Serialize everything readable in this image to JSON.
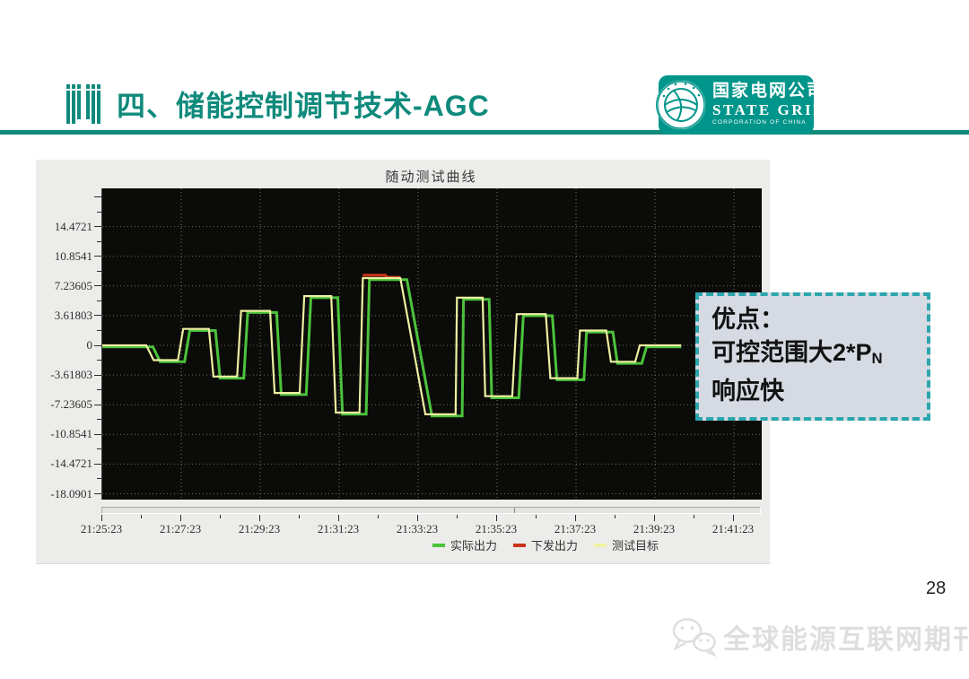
{
  "header": {
    "title": "四、储能控制调节技术-AGC"
  },
  "logo": {
    "line1": "国家电网公司",
    "line2": "STATE GRID",
    "line3": "CORPORATION OF CHINA"
  },
  "callout": {
    "line1": "优点：",
    "line2_main": "可控范围大2*P",
    "line2_sub": "N",
    "line3": "响应快"
  },
  "page_number": "28",
  "watermark": {
    "text": "全球能源互联网期刊",
    "icon": "wechat-icon"
  },
  "colors": {
    "accent_teal": "#0f8a7c",
    "logo_teal": "#00958a",
    "callout_border": "#2ba6ad",
    "callout_bg": "#d6dae3",
    "plot_bg": "#0b0b09",
    "panel_bg": "#ececea"
  },
  "chart_data": {
    "type": "line",
    "title": "随动测试曲线",
    "xlabel": "",
    "ylabel": "",
    "grid": true,
    "legend_position": "bottom",
    "x_tick_labels": [
      "21:25:23",
      "21:27:23",
      "21:29:23",
      "21:31:23",
      "21:33:23",
      "21:35:23",
      "21:37:23",
      "21:39:23",
      "21:41:23"
    ],
    "x_tick_interval_s": 120,
    "x_minor_interval_s": 60,
    "x_span_s": 1002,
    "y_tick_values": [
      14.4721,
      10.8541,
      7.23605,
      3.61803,
      0,
      -3.61803,
      -7.23605,
      -10.8541,
      -14.4721,
      -18.0901
    ],
    "y_range": [
      -19.1,
      19.1
    ],
    "series": [
      {
        "name": "实际出力",
        "color": "#4cc23c",
        "style": "step",
        "lag_s": 10,
        "segments": [
          [
            0,
            67,
            0
          ],
          [
            78,
            115,
            -1.8
          ],
          [
            123,
            162,
            2.0
          ],
          [
            169,
            205,
            -3.8
          ],
          [
            211,
            255,
            4.2
          ],
          [
            262,
            300,
            -5.8
          ],
          [
            307,
            348,
            6.0
          ],
          [
            355,
            391,
            -8.2
          ],
          [
            396,
            453,
            8.2
          ],
          [
            491,
            537,
            -8.4
          ],
          [
            539,
            578,
            5.8
          ],
          [
            582,
            623,
            -6.2
          ],
          [
            630,
            674,
            3.8
          ],
          [
            681,
            722,
            -4.0
          ],
          [
            726,
            766,
            1.8
          ],
          [
            773,
            810,
            -2.0
          ],
          [
            817,
            880,
            0
          ]
        ]
      },
      {
        "name": "下发出力",
        "color": "#cc3418",
        "style": "step",
        "lag_s": 0,
        "segments": [
          [
            396,
            430,
            8.55
          ],
          [
            433,
            453,
            8.3
          ]
        ]
      },
      {
        "name": "测试目标",
        "color": "#eef0a2",
        "style": "step",
        "lag_s": 0,
        "segments": [
          [
            0,
            67,
            0
          ],
          [
            78,
            115,
            -1.8
          ],
          [
            123,
            162,
            2.0
          ],
          [
            169,
            205,
            -3.8
          ],
          [
            211,
            255,
            4.2
          ],
          [
            262,
            300,
            -5.8
          ],
          [
            307,
            348,
            6.0
          ],
          [
            355,
            391,
            -8.2
          ],
          [
            396,
            453,
            8.2
          ],
          [
            491,
            537,
            -8.4
          ],
          [
            539,
            578,
            5.8
          ],
          [
            582,
            623,
            -6.2
          ],
          [
            630,
            674,
            3.8
          ],
          [
            681,
            722,
            -4.0
          ],
          [
            726,
            766,
            1.8
          ],
          [
            773,
            810,
            -2.0
          ],
          [
            817,
            880,
            0
          ]
        ]
      }
    ]
  }
}
